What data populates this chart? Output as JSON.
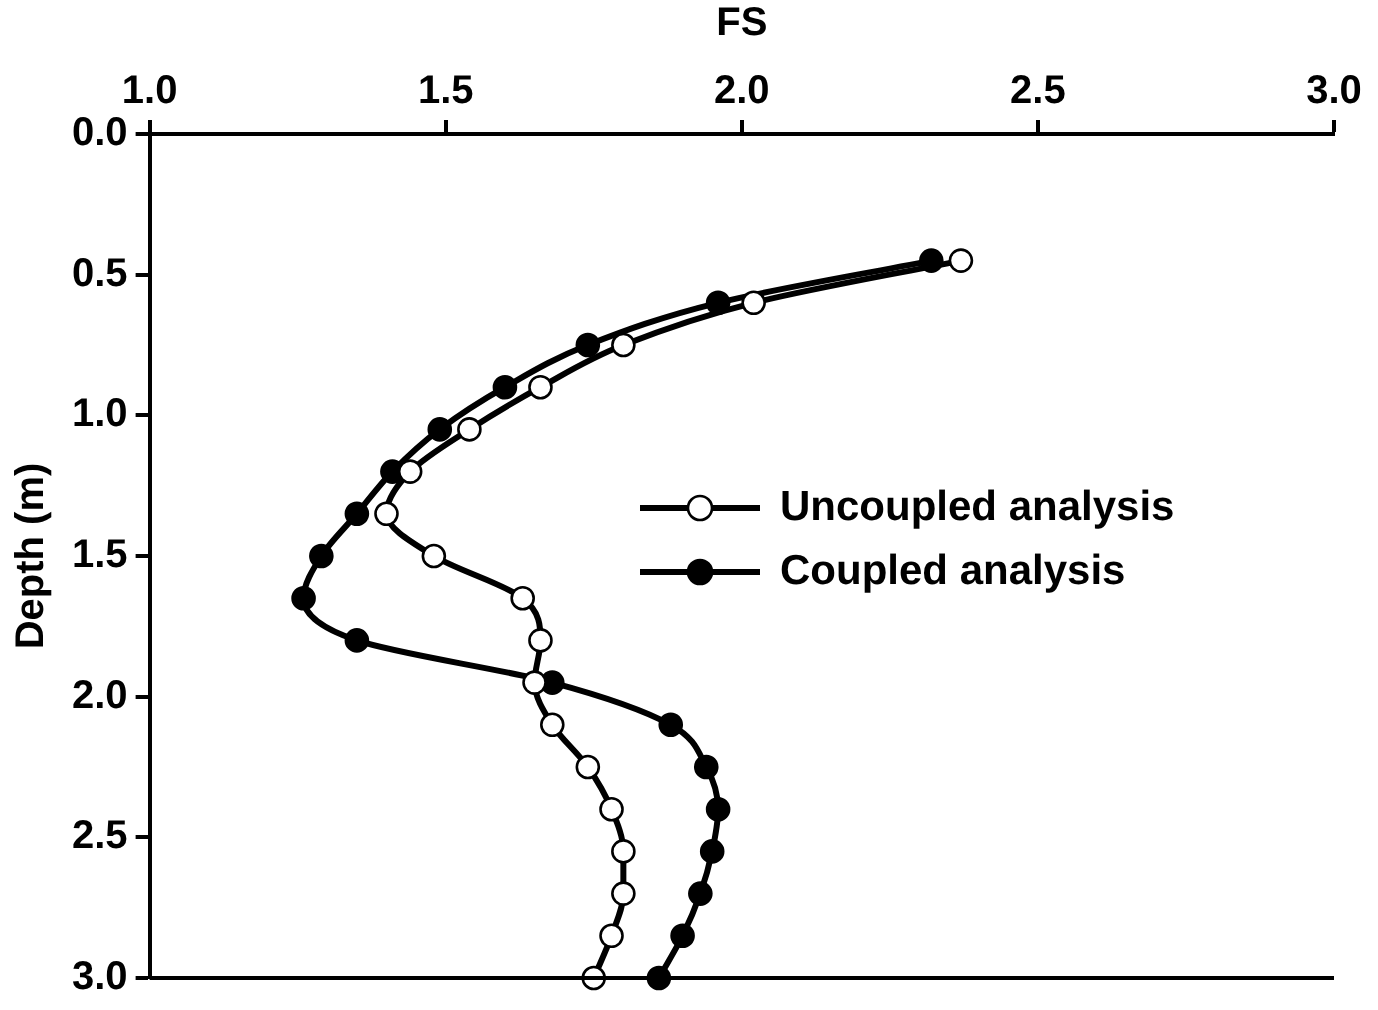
{
  "chart_data": {
    "type": "line",
    "xlabel": "FS",
    "ylabel": "Depth (m)",
    "xlim": [
      1.0,
      3.0
    ],
    "xticks": [
      {
        "value": 1,
        "label": "1.0"
      },
      {
        "value": 1.5,
        "label": "1.5"
      },
      {
        "value": 2,
        "label": "2.0"
      },
      {
        "value": 2.5,
        "label": "2.5"
      },
      {
        "value": 3,
        "label": "3.0"
      }
    ],
    "ylim": [
      3.0,
      0.0
    ],
    "yticks": [
      {
        "value": 0,
        "label": "0.0"
      },
      {
        "value": 0.5,
        "label": "0.5"
      },
      {
        "value": 1,
        "label": "1.0"
      },
      {
        "value": 1.5,
        "label": "1.5"
      },
      {
        "value": 2,
        "label": "2.0"
      },
      {
        "value": 2.5,
        "label": "2.5"
      },
      {
        "value": 3,
        "label": "3.0"
      }
    ],
    "grid": false,
    "legend": "right",
    "marker": "circle",
    "line_style": "solid",
    "series": [
      {
        "name": "Uncoupled analysis",
        "color": "#000000",
        "colors": [
          "#ffffff",
          "#ffffff",
          "#ffffff",
          "#ffffff",
          "#ffffff",
          "#ffffff",
          "#ffffff",
          "#ffffff",
          "#ffffff",
          "#ffffff",
          "#ffffff",
          "#ffffff",
          "#ffffff",
          "#ffffff",
          "#ffffff",
          "#ffffff",
          "#ffffff",
          "#ffffff"
        ],
        "x": [
          2.37,
          2.02,
          1.8,
          1.66,
          1.54,
          1.44,
          1.4,
          1.48,
          1.63,
          1.66,
          1.65,
          1.68,
          1.74,
          1.78,
          1.8,
          1.8,
          1.78,
          1.75
        ],
        "values": [
          0.45,
          0.6,
          0.75,
          0.9,
          1.05,
          1.2,
          1.35,
          1.5,
          1.65,
          1.8,
          1.95,
          2.1,
          2.25,
          2.4,
          2.55,
          2.7,
          2.85,
          3.0
        ]
      },
      {
        "name": "Coupled analysis",
        "color": "#000000",
        "x": [
          2.32,
          1.96,
          1.74,
          1.6,
          1.49,
          1.41,
          1.35,
          1.29,
          1.26,
          1.35,
          1.68,
          1.88,
          1.94,
          1.96,
          1.95,
          1.93,
          1.9,
          1.86
        ],
        "values": [
          0.45,
          0.6,
          0.75,
          0.9,
          1.05,
          1.2,
          1.35,
          1.5,
          1.65,
          1.8,
          1.95,
          2.1,
          2.25,
          2.4,
          2.55,
          2.7,
          2.85,
          3.0
        ]
      }
    ]
  }
}
